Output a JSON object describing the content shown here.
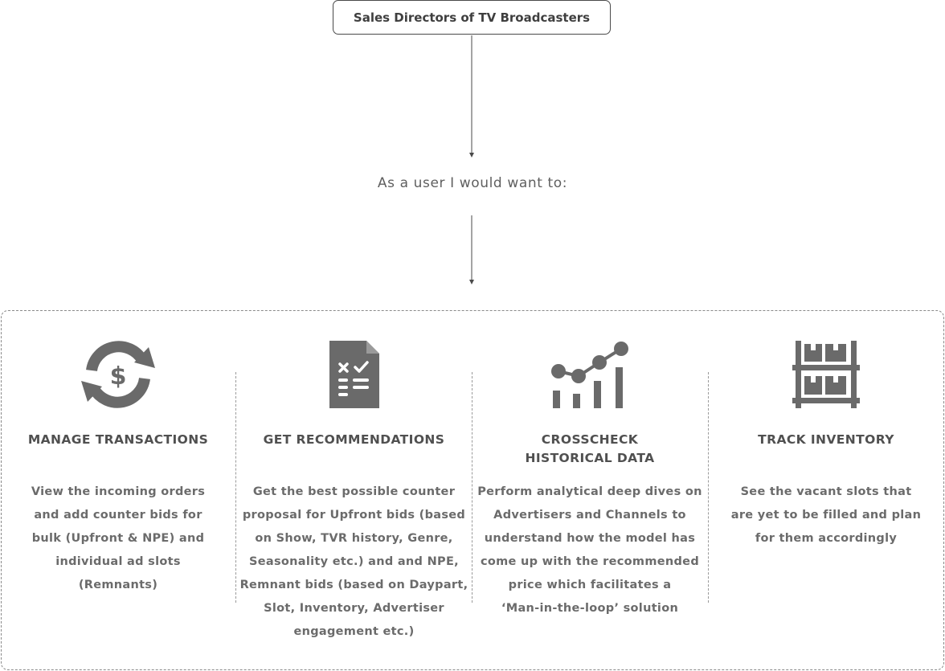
{
  "header": {
    "role_label": "Sales Directors of TV Broadcasters",
    "subtitle": "As a user I would want to:"
  },
  "colors": {
    "icon": "#6a6a6a",
    "text": "#555555",
    "border": "#8a8a8a"
  },
  "columns": [
    {
      "icon": "currency-cycle-icon",
      "title": "MANAGE TRANSACTIONS",
      "description_lines": [
        "View the incoming orders",
        "and add counter bids for",
        "bulk (Upfront & NPE) and",
        "individual ad slots",
        "(Remnants)"
      ]
    },
    {
      "icon": "checklist-document-icon",
      "title": "GET RECOMMENDATIONS",
      "description_lines": [
        "Get the best possible counter",
        "proposal for Upfront bids (based",
        "on Show, TVR history, Genre,",
        "Seasonality etc.) and  and NPE,",
        "Remnant bids (based on Daypart,",
        "Slot, Inventory, Advertiser",
        "engagement etc.)"
      ]
    },
    {
      "icon": "analytics-chart-icon",
      "title_lines": [
        "CROSSCHECK",
        "HISTORICAL DATA"
      ],
      "description_lines": [
        "Perform analytical deep dives on",
        "Advertisers and Channels to",
        "understand how the model has",
        "come up with the recommended",
        "price which facilitates a",
        "‘Man-in-the-loop’ solution"
      ]
    },
    {
      "icon": "warehouse-shelf-icon",
      "title": "TRACK INVENTORY",
      "description_lines": [
        "See the vacant slots that",
        "are yet to be filled and plan",
        "for them accordingly"
      ]
    }
  ]
}
